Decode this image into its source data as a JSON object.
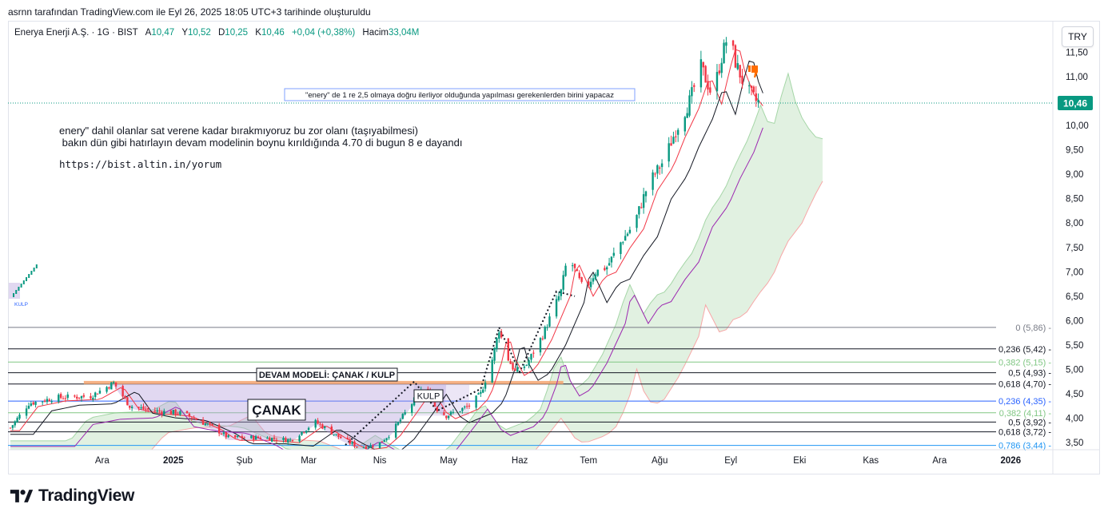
{
  "caption": "asrnn tarafından TradingView.com ile Eyl 26, 2025 18:05 UTC+3 tarihinde oluşturuldu",
  "legend": {
    "symbol": "Enerya Enerji A.Ş. · 1G · BIST",
    "open_label": "A",
    "open": "10,47",
    "high_label": "Y",
    "high": "10,52",
    "low_label": "D",
    "low": "10,25",
    "close_label": "K",
    "close": "10,46",
    "change": "+0,04 (+0,38%)",
    "volume_label": "Hacim",
    "volume": "33,04M"
  },
  "currency_button": "TRY",
  "notes": {
    "line1": "enery\" dahil olanlar sat verene kadar bırakmıyoruz bu zor olanı (taşıyabilmesi)",
    "line2": " bakın dün gibi hatırlayın devam modelinin boynu kırıldığında 4.70 di bugun 8 e dayandı",
    "link": "https://bist.altin.in/yorum"
  },
  "brand": {
    "name": "TradingView",
    "icon": "tradingview-logo-icon"
  },
  "chart_data": {
    "type": "candlestick",
    "title": "Enerya Enerji A.Ş. · 1G · BIST",
    "ylim": [
      3.3,
      12.0
    ],
    "y_ticks": [
      "3,50",
      "4,00",
      "4,50",
      "5,00",
      "5,50",
      "6,00",
      "6,50",
      "7,00",
      "7,50",
      "8,00",
      "8,50",
      "9,00",
      "9,50",
      "10,00",
      "10,50",
      "11,00",
      "11,50"
    ],
    "y_tick_values": [
      3.5,
      4.0,
      4.5,
      5.0,
      5.5,
      6.0,
      6.5,
      7.0,
      7.5,
      8.0,
      8.5,
      9.0,
      9.5,
      10.0,
      10.5,
      11.0,
      11.5
    ],
    "x_ticks": [
      "Ara",
      "2025",
      "Şub",
      "Mar",
      "Nis",
      "May",
      "Haz",
      "Tem",
      "Ağu",
      "Eyl",
      "Eki",
      "Kas",
      "Ara",
      "2026"
    ],
    "x_tick_days": [
      40,
      71,
      102,
      130,
      161,
      191,
      222,
      252,
      283,
      314,
      344,
      375,
      405,
      436
    ],
    "last_price": {
      "label": "10,46",
      "value": 10.46,
      "color": "#089981"
    },
    "close_anchors": [
      [
        0,
        3.8
      ],
      [
        8,
        4.3
      ],
      [
        20,
        4.42
      ],
      [
        35,
        4.45
      ],
      [
        45,
        4.72
      ],
      [
        52,
        4.25
      ],
      [
        62,
        4.15
      ],
      [
        75,
        4.1
      ],
      [
        88,
        3.82
      ],
      [
        95,
        3.6
      ],
      [
        110,
        3.6
      ],
      [
        122,
        3.55
      ],
      [
        133,
        3.92
      ],
      [
        143,
        3.62
      ],
      [
        152,
        3.4
      ],
      [
        160,
        3.45
      ],
      [
        166,
        3.7
      ],
      [
        175,
        4.3
      ],
      [
        180,
        4.65
      ],
      [
        186,
        4.18
      ],
      [
        190,
        4.05
      ],
      [
        200,
        4.25
      ],
      [
        205,
        4.5
      ],
      [
        210,
        5.2
      ],
      [
        213,
        5.82
      ],
      [
        216,
        5.3
      ],
      [
        220,
        4.95
      ],
      [
        225,
        5.1
      ],
      [
        232,
        5.7
      ],
      [
        240,
        6.6
      ],
      [
        243,
        7.35
      ],
      [
        250,
        6.6
      ],
      [
        255,
        7.0
      ],
      [
        260,
        7.1
      ],
      [
        266,
        7.6
      ],
      [
        272,
        8.0
      ],
      [
        278,
        8.8
      ],
      [
        285,
        9.3
      ],
      [
        290,
        9.9
      ],
      [
        296,
        10.5
      ],
      [
        301,
        11.2
      ],
      [
        306,
        10.6
      ],
      [
        310,
        11.4
      ],
      [
        313,
        11.9
      ],
      [
        316,
        11.3
      ],
      [
        320,
        10.8
      ],
      [
        325,
        10.5
      ],
      [
        328,
        10.46
      ]
    ],
    "fibonacci_upper": {
      "levels": [
        {
          "label": "0 (5,86)",
          "value": 5.86,
          "color": "#787b86"
        },
        {
          "label": "0,236 (5,42)",
          "value": 5.42,
          "color": "#131722"
        },
        {
          "label": "0,382 (5,15)",
          "value": 5.15,
          "color": "#81c784"
        },
        {
          "label": "0,5 (4,93)",
          "value": 4.93,
          "color": "#131722"
        },
        {
          "label": "0,618 (4,70)",
          "value": 4.7,
          "color": "#131722"
        }
      ]
    },
    "fibonacci_lower": {
      "levels": [
        {
          "label": "0,236 (4,35)",
          "value": 4.35,
          "color": "#2962ff"
        },
        {
          "label": "0,382 (4,11)",
          "value": 4.11,
          "color": "#81c784"
        },
        {
          "label": "0,5 (3,92)",
          "value": 3.92,
          "color": "#131722"
        },
        {
          "label": "0,618 (3,72)",
          "value": 3.72,
          "color": "#131722"
        },
        {
          "label": "0,786 (3,44)",
          "value": 3.44,
          "color": "#2196f3"
        }
      ]
    },
    "annotations": {
      "continuation": "DEVAM MODELİ: ÇANAK / KULP",
      "cup": "ÇANAK",
      "handle": "KULP",
      "handle_small": "KULP",
      "callout": "\"enery\" de 1 re 2,5 olmaya doğru ilerliyor olduğunda yapılması gerekenlerden birini yapacaz"
    },
    "resistance_level": 4.73,
    "colors": {
      "up": "#089981",
      "down": "#f23645",
      "ma_fast": "#f23645",
      "ma_mid": "#131722",
      "ma_slow": "#9c27b0",
      "cloud": "#c8e6c9",
      "resistance": "#f4a470",
      "cup_fill": "#b39ddb"
    }
  }
}
